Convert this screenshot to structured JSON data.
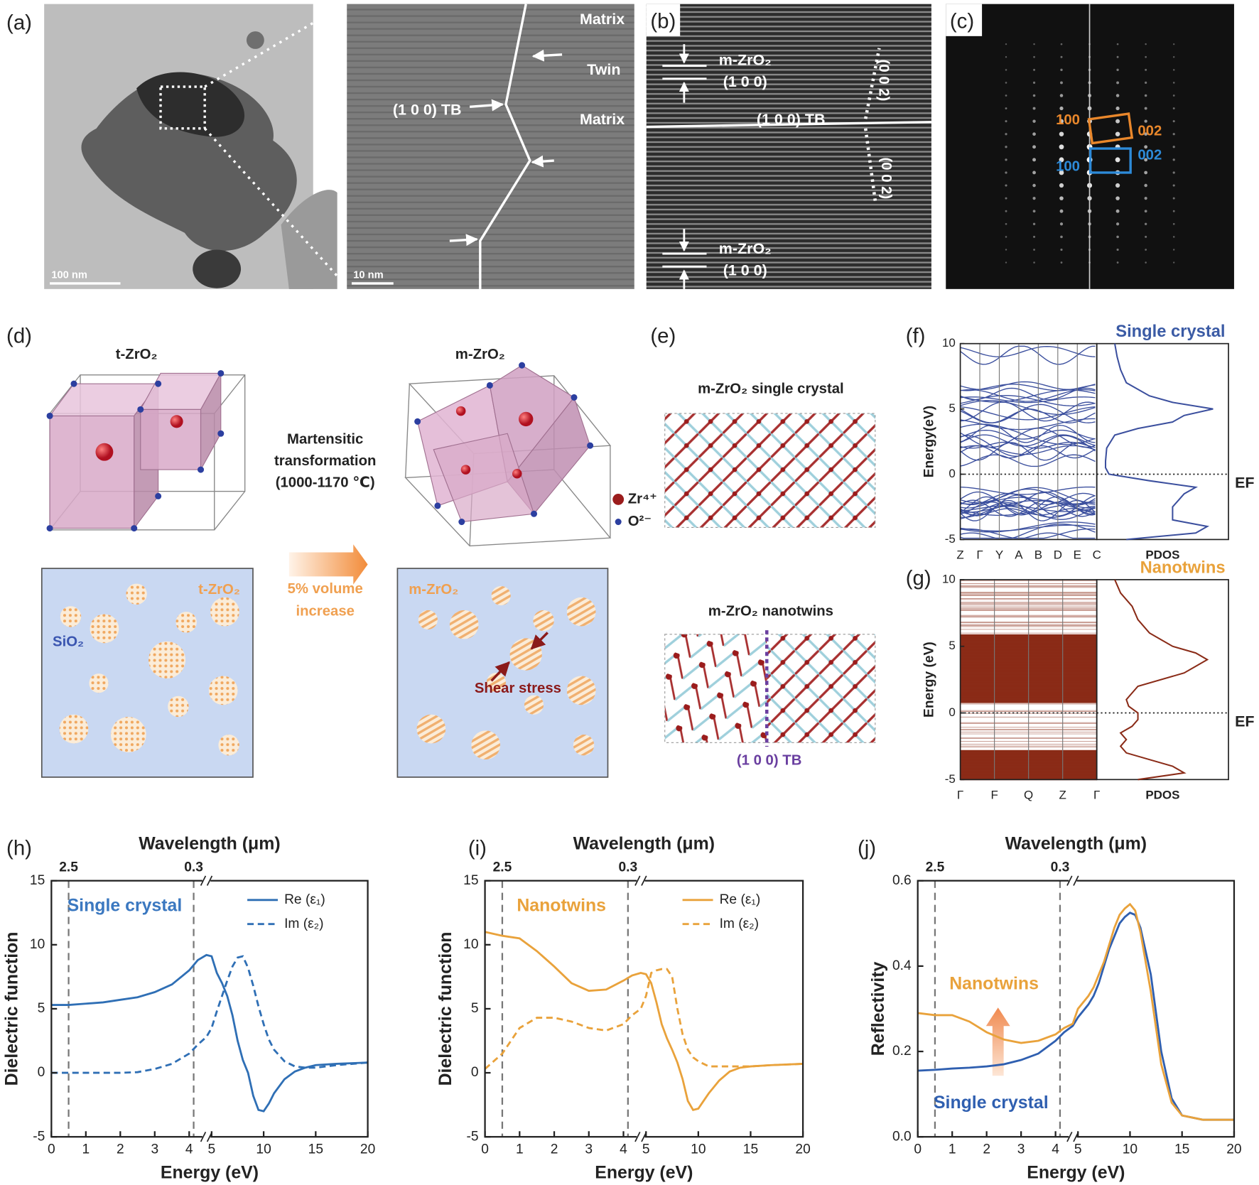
{
  "panels": {
    "a": {
      "label": "(a)",
      "scale_bar_1": "100 nm",
      "scale_bar_2": "10 nm",
      "annotations": [
        "Matrix",
        "Twin",
        "(1 0 0) TB",
        "Matrix"
      ]
    },
    "b": {
      "label": "(b)",
      "annotations": [
        "m-ZrO₂",
        "(1 0 0)",
        "(1 0 0) TB",
        "(0 0 2)",
        "(0 0 2)",
        "m-ZrO₂",
        "(1 0 0)"
      ]
    },
    "c": {
      "label": "(c)",
      "annotations": [
        "100",
        "002",
        "002",
        "100"
      ]
    },
    "d": {
      "label": "(d)",
      "t_title": "t-ZrO₂",
      "m_title": "m-ZrO₂",
      "transformation": [
        "Martensitic",
        "transformation",
        "(1000-1170 ℃)"
      ],
      "volume": [
        "5% volume",
        "increase"
      ],
      "legend": [
        "Zr⁴⁺",
        "O²⁻"
      ],
      "box_labels": [
        "t-ZrO₂",
        "SiO₂",
        "m-ZrO₂",
        "Shear stress"
      ]
    },
    "e": {
      "label": "(e)",
      "top_title": "m-ZrO₂ single crystal",
      "bottom_title": "m-ZrO₂ nanotwins",
      "tb": "(1 0 0) TB"
    }
  },
  "chart_data": [
    {
      "type": "band",
      "panel_label": "(f)",
      "title": "Single crystal",
      "title_color": "#3b5ba5",
      "color": "#3b4f9e",
      "ylabel": "Energy(eV)",
      "ylim": [
        -5,
        10
      ],
      "yticks": [
        -5,
        0,
        5,
        10
      ],
      "categories": [
        "Z",
        "Γ",
        "Y",
        "A",
        "B",
        "D",
        "E",
        "C"
      ],
      "pdos_label": "PDOS",
      "fermi_label": "EF",
      "pdos": {
        "energy": [
          -5,
          -4.5,
          -4,
          -3.5,
          -3,
          -2.5,
          -2,
          -1.5,
          -1,
          -0.5,
          0,
          0.5,
          1,
          2,
          3,
          3.5,
          4,
          4.5,
          5,
          5.5,
          6,
          7,
          8,
          9,
          10
        ],
        "values": [
          2,
          8,
          9,
          6,
          6,
          6,
          6.5,
          7,
          8,
          4,
          0.5,
          0.2,
          0.2,
          0.3,
          1,
          3,
          6,
          7,
          9.5,
          6,
          4,
          2,
          1.5,
          1.2,
          1
        ]
      }
    },
    {
      "type": "band",
      "panel_label": "(g)",
      "title": "Nanotwins",
      "title_color": "#e9a23b",
      "color": "#8a2b17",
      "ylabel": "Energy (eV)",
      "ylim": [
        -5,
        10
      ],
      "yticks": [
        -5,
        0,
        5,
        10
      ],
      "categories": [
        "Γ",
        "F",
        "Q",
        "Z",
        "Γ"
      ],
      "pdos_label": "PDOS",
      "fermi_label": "EF",
      "pdos": {
        "energy": [
          -5,
          -4.5,
          -4,
          -3.5,
          -3,
          -2.5,
          -2,
          -1.5,
          -1,
          -0.5,
          0,
          0.5,
          1,
          2,
          3,
          3.5,
          4,
          4.5,
          5,
          5.5,
          6,
          7,
          8,
          9,
          10
        ],
        "values": [
          3,
          7,
          6,
          4,
          2,
          1.5,
          2,
          1.5,
          2.5,
          3,
          3,
          2.2,
          2,
          3,
          7,
          8,
          9,
          8,
          6,
          5,
          4,
          3,
          2.5,
          1.5,
          1
        ]
      }
    },
    {
      "type": "line",
      "panel_label": "(h)",
      "xlabel": "Energy (eV)",
      "ylabel": "Dielectric function",
      "x2label": "Wavelength (μm)",
      "xlim": [
        0,
        20
      ],
      "xbreak": 4.5,
      "xticks": [
        0,
        1,
        2,
        3,
        4,
        5,
        10,
        15,
        20
      ],
      "x2ticks": [
        {
          "value": 0.5,
          "label": "2.5"
        },
        {
          "value": 4.13,
          "label": "0.3"
        }
      ],
      "ylim": [
        -5,
        15
      ],
      "yticks": [
        -5,
        0,
        5,
        10,
        15
      ],
      "legend": "upper right",
      "x": [
        0,
        0.5,
        1,
        1.5,
        2,
        2.5,
        3,
        3.5,
        4,
        4.25,
        4.5,
        5,
        5.5,
        6,
        6.5,
        7,
        7.5,
        8,
        8.5,
        9,
        9.5,
        10,
        10.5,
        11,
        12,
        13,
        14,
        15,
        17,
        20
      ],
      "series": [
        {
          "name": "Re (ε₁)",
          "color": "#2f6fb5",
          "style": "solid",
          "values": [
            5.3,
            5.3,
            5.4,
            5.5,
            5.7,
            5.9,
            6.3,
            6.9,
            8.0,
            8.8,
            9.2,
            9.1,
            7.8,
            7.0,
            6.0,
            4.5,
            2.5,
            1.0,
            0,
            -1.8,
            -2.9,
            -3.0,
            -2.4,
            -1.6,
            -0.5,
            0.1,
            0.4,
            0.6,
            0.7,
            0.8
          ]
        },
        {
          "name": "Im (ε₂)",
          "color": "#2f6fb5",
          "style": "dashed",
          "values": [
            0,
            0,
            0,
            0,
            0,
            0.05,
            0.3,
            0.7,
            1.5,
            2.2,
            2.8,
            3.5,
            4.8,
            6.0,
            7.2,
            8.3,
            9.0,
            9.1,
            8.2,
            6.8,
            5.2,
            3.8,
            2.6,
            1.8,
            0.9,
            0.5,
            0.4,
            0.4,
            0.6,
            0.8
          ]
        }
      ],
      "annotations": [
        {
          "text": "Single crystal",
          "color": "#3b78c0"
        }
      ]
    },
    {
      "type": "line",
      "panel_label": "(i)",
      "xlabel": "Energy (eV)",
      "ylabel": "Dielectric function",
      "x2label": "Wavelength (μm)",
      "xlim": [
        0,
        20
      ],
      "xbreak": 4.5,
      "xticks": [
        0,
        1,
        2,
        3,
        4,
        5,
        10,
        15,
        20
      ],
      "x2ticks": [
        {
          "value": 0.5,
          "label": "2.5"
        },
        {
          "value": 4.13,
          "label": "0.3"
        }
      ],
      "ylim": [
        -5,
        15
      ],
      "yticks": [
        -5,
        0,
        5,
        10,
        15
      ],
      "legend": "upper right",
      "x": [
        0,
        0.5,
        1,
        1.5,
        2,
        2.5,
        3,
        3.5,
        4,
        4.25,
        4.5,
        5,
        5.5,
        6,
        6.5,
        7,
        7.5,
        8,
        8.5,
        9,
        9.5,
        10,
        10.5,
        11,
        12,
        13,
        14,
        15,
        17,
        20
      ],
      "series": [
        {
          "name": "Re (ε₁)",
          "color": "#e9a23b",
          "style": "solid",
          "values": [
            11.0,
            10.7,
            10.5,
            9.5,
            8.3,
            7.0,
            6.4,
            6.5,
            7.2,
            7.6,
            7.8,
            7.7,
            7.0,
            5.5,
            3.8,
            2.7,
            1.8,
            0.8,
            -0.5,
            -2.2,
            -2.9,
            -2.8,
            -2.2,
            -1.6,
            -0.6,
            0.1,
            0.4,
            0.5,
            0.6,
            0.7
          ]
        },
        {
          "name": "Im (ε₂)",
          "color": "#e9a23b",
          "style": "dashed",
          "values": [
            0.3,
            1.5,
            3.5,
            4.3,
            4.3,
            4.0,
            3.5,
            3.3,
            3.8,
            4.5,
            5.0,
            6.0,
            7.8,
            8.0,
            8.1,
            8.1,
            7.5,
            5.0,
            3.0,
            1.8,
            1.2,
            0.9,
            0.7,
            0.5,
            0.5,
            0.5,
            0.5,
            0.5,
            0.6,
            0.7
          ]
        }
      ],
      "annotations": [
        {
          "text": "Nanotwins",
          "color": "#e9a23b"
        }
      ]
    },
    {
      "type": "line",
      "panel_label": "(j)",
      "xlabel": "Energy (eV)",
      "ylabel": "Reflectivity",
      "x2label": "Wavelength (μm)",
      "xlim": [
        0,
        20
      ],
      "xbreak": 4.5,
      "xticks": [
        0,
        1,
        2,
        3,
        4,
        5,
        10,
        15,
        20
      ],
      "x2ticks": [
        {
          "value": 0.5,
          "label": "2.5"
        },
        {
          "value": 4.13,
          "label": "0.3"
        }
      ],
      "ylim": [
        0,
        0.6
      ],
      "yticks": [
        {
          "value": 0,
          "label": "0.0"
        },
        {
          "value": 0.2,
          "label": "0.2"
        },
        {
          "value": 0.4,
          "label": "0.4"
        },
        {
          "value": 0.6,
          "label": "0.6"
        }
      ],
      "x": [
        0,
        0.5,
        1,
        1.5,
        2,
        2.5,
        3,
        3.5,
        4,
        4.25,
        4.5,
        5,
        5.5,
        6,
        6.5,
        7,
        7.5,
        8,
        8.5,
        9,
        9.5,
        10,
        10.5,
        11,
        12,
        13,
        14,
        15,
        17,
        20
      ],
      "series": [
        {
          "color": "#2f5fb0",
          "style": "solid",
          "values": [
            0.155,
            0.157,
            0.16,
            0.162,
            0.165,
            0.17,
            0.18,
            0.195,
            0.225,
            0.245,
            0.26,
            0.28,
            0.295,
            0.31,
            0.33,
            0.36,
            0.4,
            0.44,
            0.47,
            0.5,
            0.515,
            0.525,
            0.52,
            0.49,
            0.38,
            0.2,
            0.09,
            0.05,
            0.04,
            0.04
          ]
        },
        {
          "color": "#e9a23b",
          "style": "solid",
          "values": [
            0.29,
            0.285,
            0.285,
            0.27,
            0.245,
            0.228,
            0.22,
            0.225,
            0.24,
            0.255,
            0.265,
            0.3,
            0.315,
            0.33,
            0.35,
            0.38,
            0.41,
            0.45,
            0.49,
            0.52,
            0.535,
            0.545,
            0.53,
            0.48,
            0.34,
            0.17,
            0.08,
            0.05,
            0.04,
            0.04
          ]
        }
      ],
      "annotations": [
        {
          "text": "Nanotwins",
          "color": "#e9a23b"
        },
        {
          "text": "Single crystal",
          "color": "#2f5fb0"
        }
      ]
    }
  ]
}
